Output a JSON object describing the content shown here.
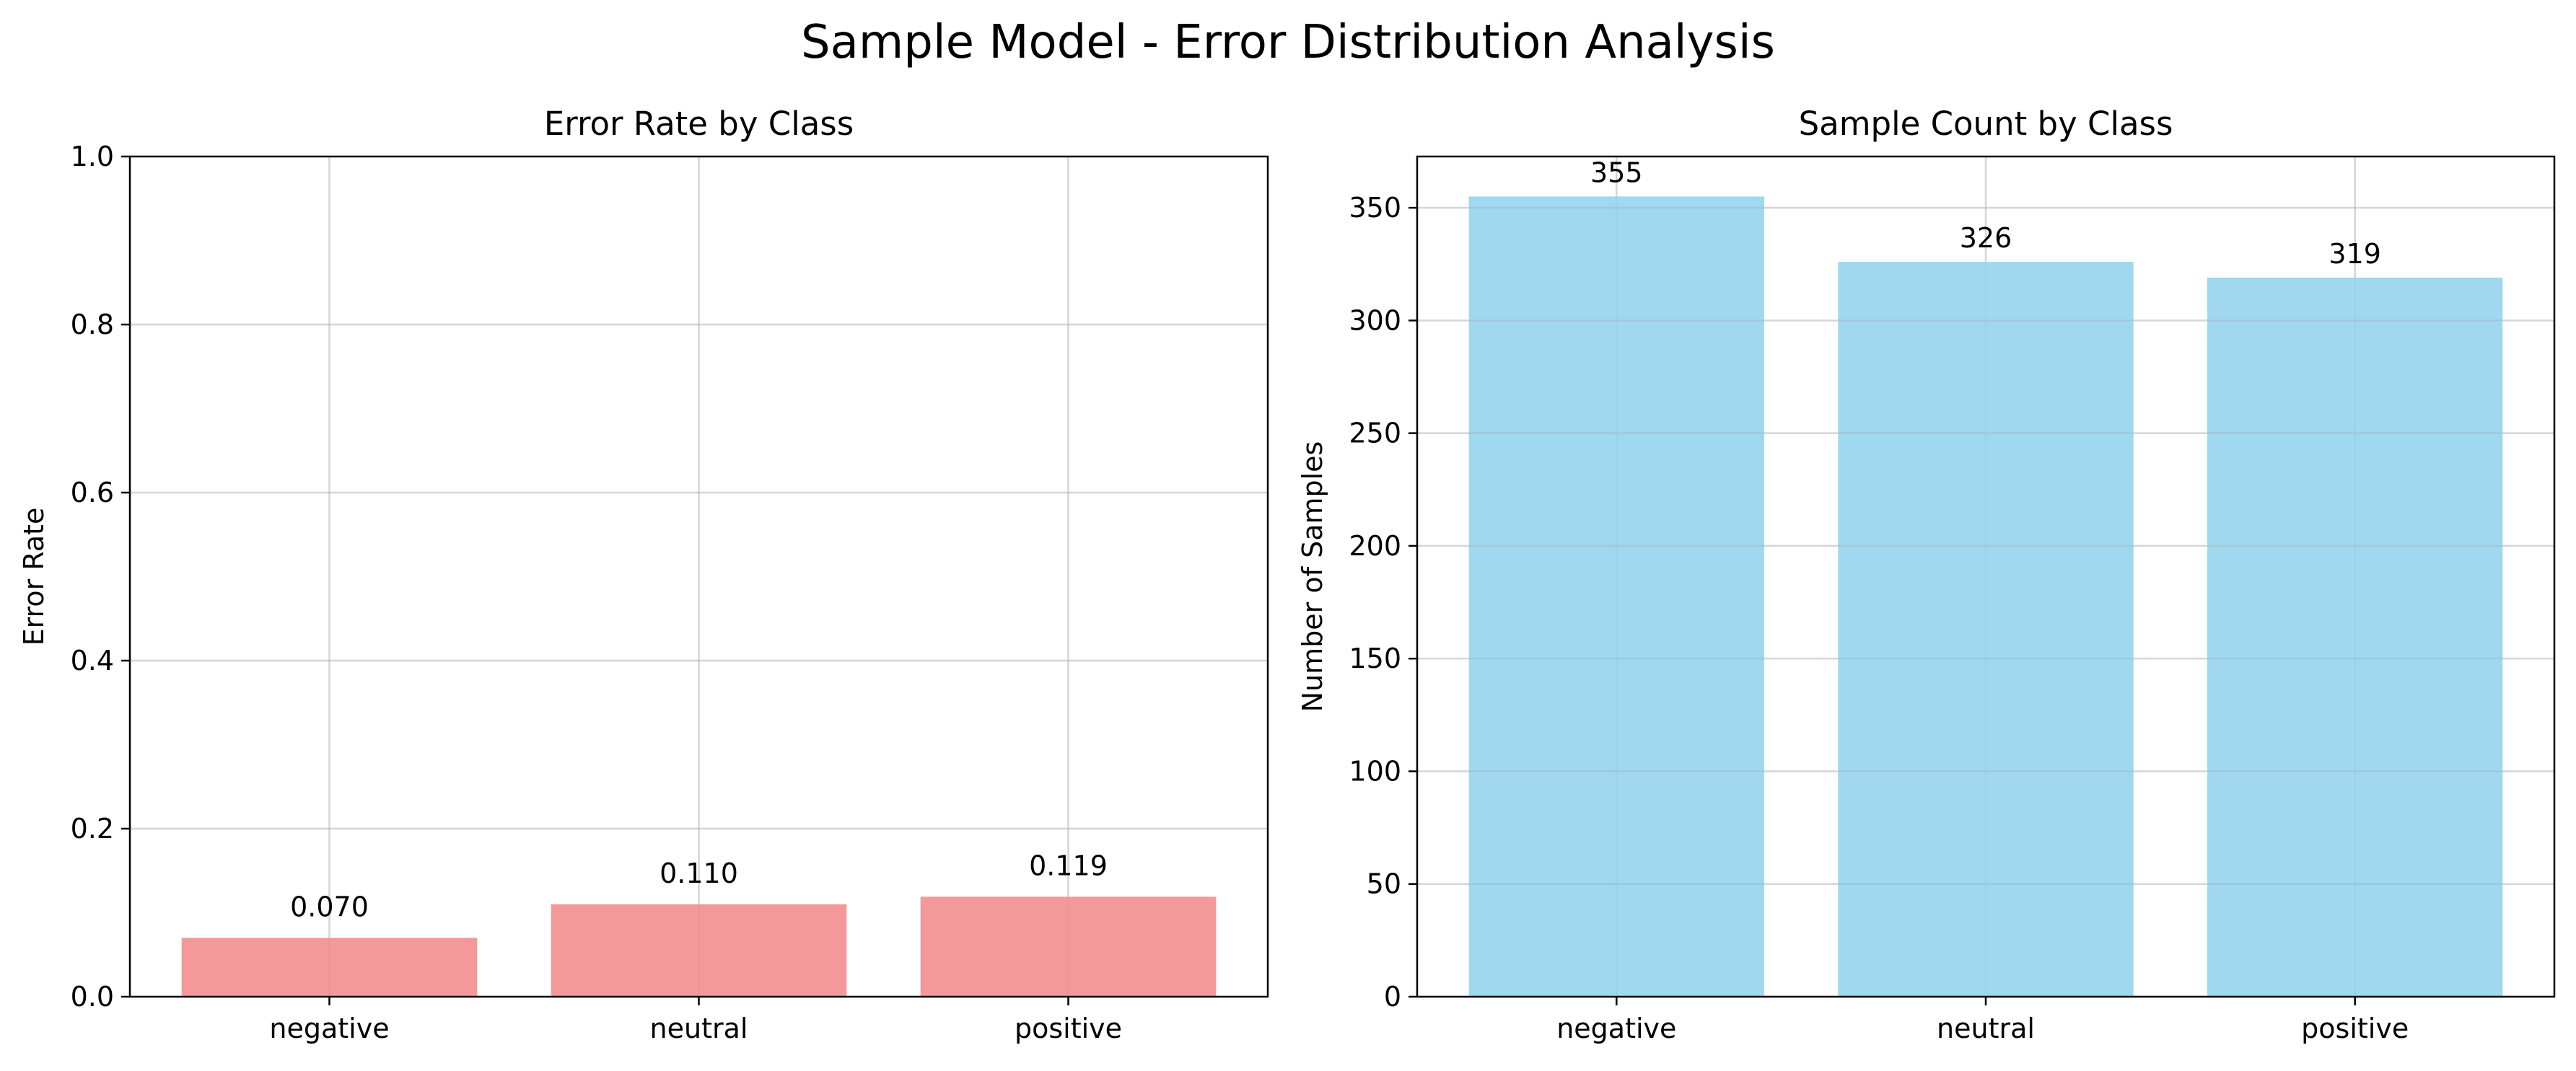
{
  "figure": {
    "title": "Sample Model - Error Distribution Analysis"
  },
  "chart_data": [
    {
      "type": "bar",
      "title": "Error Rate by Class",
      "xlabel": "",
      "ylabel": "Error Rate",
      "categories": [
        "negative",
        "neutral",
        "positive"
      ],
      "values": [
        0.07,
        0.11,
        0.119
      ],
      "value_labels": [
        "0.070",
        "0.110",
        "0.119"
      ],
      "ylim": [
        0,
        1.0
      ],
      "yticks": [
        0.0,
        0.2,
        0.4,
        0.6,
        0.8,
        1.0
      ],
      "ytick_labels": [
        "0.0",
        "0.2",
        "0.4",
        "0.6",
        "0.8",
        "1.0"
      ],
      "color": "#f08080",
      "grid": true
    },
    {
      "type": "bar",
      "title": "Sample Count by Class",
      "xlabel": "",
      "ylabel": "Number of Samples",
      "categories": [
        "negative",
        "neutral",
        "positive"
      ],
      "values": [
        355,
        326,
        319
      ],
      "value_labels": [
        "355",
        "326",
        "319"
      ],
      "ylim": [
        0,
        372.75
      ],
      "yticks": [
        0,
        50,
        100,
        150,
        200,
        250,
        300,
        350
      ],
      "ytick_labels": [
        "0",
        "50",
        "100",
        "150",
        "200",
        "250",
        "300",
        "350"
      ],
      "color": "#87ceeb",
      "grid": true
    }
  ]
}
